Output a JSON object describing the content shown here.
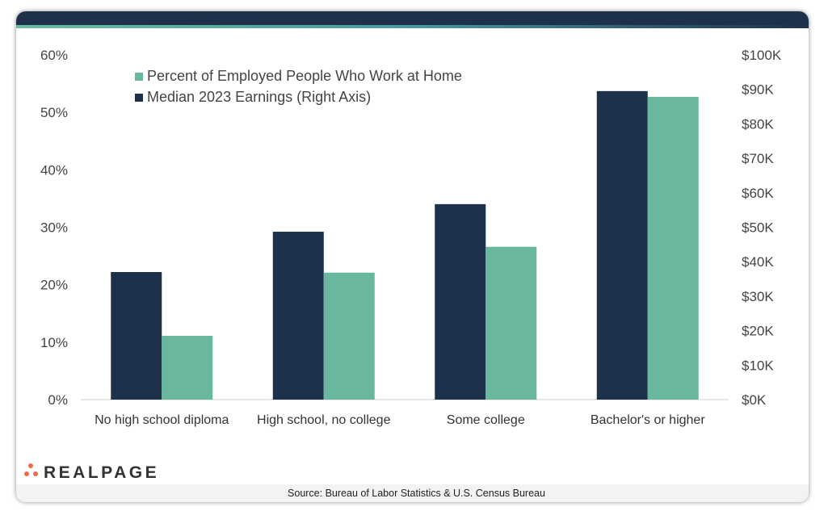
{
  "chart_data": {
    "type": "bar",
    "categories": [
      "No high school diploma",
      "High school, no college",
      "Some college",
      "Bachelor's or higher"
    ],
    "series": [
      {
        "name": "Median 2023 Earnings (Right Axis)",
        "axis": "right",
        "color": "#1e314b",
        "values": [
          37000,
          48700,
          56700,
          89500
        ]
      },
      {
        "name": "Percent of Employed People Who Work at Home",
        "axis": "left",
        "color": "#69b89d",
        "values": [
          11.1,
          22.1,
          26.6,
          52.7
        ]
      }
    ],
    "legend_order": [
      1,
      0
    ],
    "left_axis": {
      "ylim": [
        0,
        60
      ],
      "ticks": [
        "0%",
        "10%",
        "20%",
        "30%",
        "40%",
        "50%",
        "60%"
      ]
    },
    "right_axis": {
      "ylim": [
        0,
        100000
      ],
      "ticks": [
        "$0K",
        "$10K",
        "$20K",
        "$30K",
        "$40K",
        "$50K",
        "$60K",
        "$70K",
        "$80K",
        "$90K",
        "$100K"
      ]
    },
    "grid": false,
    "legend_placement": "top-left"
  },
  "branding": {
    "logo_text": "REALPAGE"
  },
  "footer": {
    "source": "Source: Bureau of Labor Statistics & U.S. Census Bureau"
  }
}
